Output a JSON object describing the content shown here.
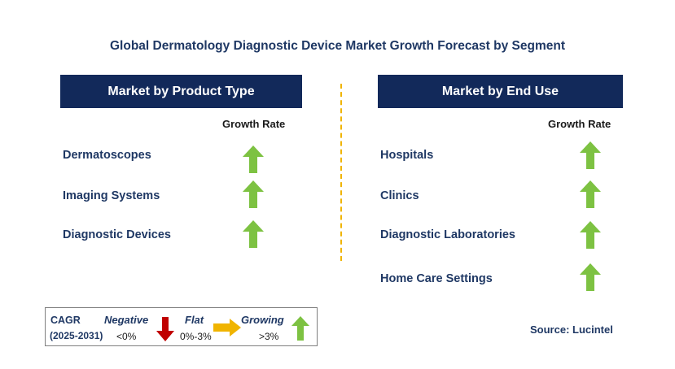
{
  "title": "Global Dermatology Diagnostic Device Market Growth Forecast by Segment",
  "left_panel": {
    "header": "Market by Product Type",
    "growth_header": "Growth Rate",
    "items": [
      {
        "label": "Dermatoscopes",
        "trend": "growing"
      },
      {
        "label": "Imaging Systems",
        "trend": "growing"
      },
      {
        "label": "Diagnostic Devices",
        "trend": "growing"
      }
    ]
  },
  "right_panel": {
    "header": "Market by End Use",
    "growth_header": "Growth Rate",
    "items": [
      {
        "label": "Hospitals",
        "trend": "growing"
      },
      {
        "label": "Clinics",
        "trend": "growing"
      },
      {
        "label": "Diagnostic Laboratories",
        "trend": "growing"
      },
      {
        "label": "Home Care Settings",
        "trend": "growing"
      }
    ]
  },
  "legend": {
    "cagr_label": "CAGR",
    "period": "(2025-2031)",
    "negative_label": "Negative",
    "negative_range": "<0%",
    "flat_label": "Flat",
    "flat_range": "0%-3%",
    "growing_label": "Growing",
    "growing_range": ">3%"
  },
  "source": "Source: Lucintel",
  "colors": {
    "header_bg": "#12295a",
    "growing": "#7dc242",
    "negative": "#c00000",
    "flat": "#f0b400",
    "divider": "#f0b400"
  },
  "icons": {
    "growing": "arrow-up-icon",
    "negative": "arrow-down-icon",
    "flat": "arrow-right-icon"
  }
}
